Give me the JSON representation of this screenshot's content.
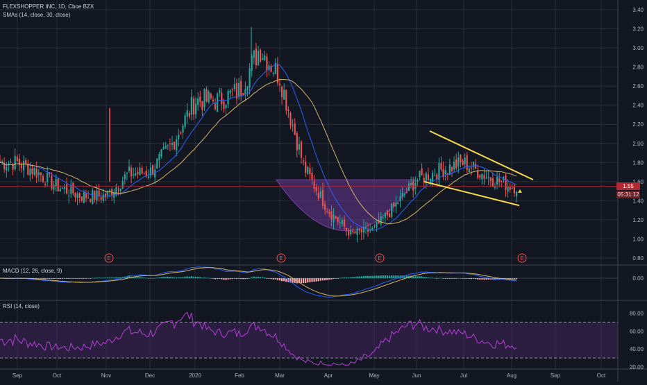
{
  "main_legend": {
    "symbol_line": "FLEXSHOPPER INC, 1D, Cboe BZX",
    "sma_line": "SMAs (14, close, 30, close)"
  },
  "macd_legend": "MACD (12, 26, close, 9)",
  "rsi_legend": "RSI (14, close)",
  "price_badge": {
    "price": "1.55",
    "countdown": "05:31:12"
  },
  "colors": {
    "background": "#131722",
    "up": "#26a69a",
    "down": "#ef5350",
    "sma_fast": "#2962ff",
    "sma_slow": "#d6b76a",
    "trendline": "#f5d94c",
    "cup_fill": "#7b3fa8",
    "rsi_line": "#b640d6",
    "rsi_band": "#5a2a7a",
    "price_line": "#b22833"
  },
  "earnings_markers": [
    "E",
    "E",
    "E",
    "E"
  ],
  "chart_data": [
    {
      "type": "candlestick",
      "title": "FLEXSHOPPER INC, 1D, Cboe BZX",
      "x_axis_labels": [
        "Sep",
        "Oct",
        "Nov",
        "Dec",
        "2020",
        "Feb",
        "Mar",
        "Apr",
        "May",
        "Jun",
        "Jul",
        "Aug",
        "Sep",
        "Oct"
      ],
      "y_axis_labels": [
        "3.40",
        "3.20",
        "3.00",
        "2.80",
        "2.60",
        "2.40",
        "2.20",
        "2.00",
        "1.80",
        "1.60",
        "1.40",
        "1.20",
        "1.00",
        "0.80"
      ],
      "ylim": [
        0.77,
        3.44
      ],
      "last_price": 1.55,
      "close_path": [
        [
          "Sep",
          1.8
        ],
        [
          "Sep-mid",
          1.7
        ],
        [
          "Oct",
          1.55
        ],
        [
          "Oct-mid",
          1.45
        ],
        [
          "Nov",
          1.45
        ],
        [
          "Nov-mid",
          1.68
        ],
        [
          "Dec",
          1.7
        ],
        [
          "Dec-mid",
          2.0
        ],
        [
          "2020",
          2.45
        ],
        [
          "2020-mid",
          2.45
        ],
        [
          "Feb",
          2.55
        ],
        [
          "Feb-mid",
          3.0
        ],
        [
          "Mar",
          2.7
        ],
        [
          "Mar-mid",
          1.75
        ],
        [
          "Apr",
          1.3
        ],
        [
          "Apr-mid",
          1.05
        ],
        [
          "May",
          1.1
        ],
        [
          "May-mid",
          1.35
        ],
        [
          "Jun",
          1.62
        ],
        [
          "Jun-mid",
          1.72
        ],
        [
          "Jul",
          1.8
        ],
        [
          "Jul-mid",
          1.65
        ],
        [
          "Aug",
          1.55
        ]
      ],
      "series": [
        {
          "name": "SMA 14"
        },
        {
          "name": "SMA 30"
        }
      ],
      "pattern": "cup and descending channel",
      "earnings": [
        "Nov",
        "Mar",
        "May",
        "Aug"
      ]
    },
    {
      "type": "bar",
      "title": "MACD (12, 26, close, 9)",
      "y_axis_labels": [
        "0.00"
      ],
      "ylim": [
        -0.25,
        0.15
      ]
    },
    {
      "type": "line",
      "title": "RSI (14, close)",
      "y_axis_labels": [
        "80.00",
        "60.00",
        "40.00",
        "20.00"
      ],
      "ylim": [
        20,
        85
      ],
      "bands": [
        30,
        70
      ]
    }
  ]
}
